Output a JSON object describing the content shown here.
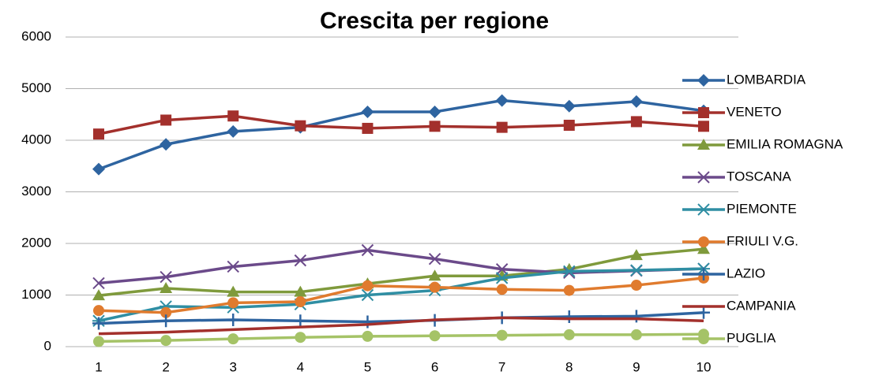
{
  "chart_data": {
    "type": "line",
    "title": "Crescita per regione",
    "categories": [
      "1",
      "2",
      "3",
      "4",
      "5",
      "6",
      "7",
      "8",
      "9",
      "10"
    ],
    "ylim": [
      0,
      6000
    ],
    "yticks": [
      0,
      1000,
      2000,
      3000,
      4000,
      5000,
      6000
    ],
    "grid": true,
    "series": [
      {
        "name": "LOMBARDIA",
        "color": "#2e64a0",
        "marker": "diamond",
        "values": [
          3440,
          3920,
          4170,
          4250,
          4550,
          4550,
          4770,
          4660,
          4750,
          4570
        ]
      },
      {
        "name": "VENETO",
        "color": "#a3302c",
        "marker": "square",
        "values": [
          4120,
          4390,
          4470,
          4280,
          4230,
          4270,
          4250,
          4290,
          4360,
          4270
        ]
      },
      {
        "name": "EMILIA ROMAGNA",
        "color": "#7f9a3c",
        "marker": "triangle",
        "values": [
          990,
          1130,
          1060,
          1060,
          1220,
          1370,
          1370,
          1500,
          1770,
          1890
        ]
      },
      {
        "name": "TOSCANA",
        "color": "#6b4a8a",
        "marker": "x",
        "values": [
          1230,
          1350,
          1550,
          1670,
          1870,
          1700,
          1500,
          1430,
          1470,
          1510
        ]
      },
      {
        "name": "PIEMONTE",
        "color": "#2f8ea3",
        "marker": "star",
        "values": [
          500,
          780,
          760,
          820,
          1000,
          1090,
          1330,
          1460,
          1480,
          1510
        ]
      },
      {
        "name": "FRIULI V.G.",
        "color": "#e07b2e",
        "marker": "circle",
        "values": [
          700,
          660,
          850,
          870,
          1180,
          1150,
          1110,
          1090,
          1190,
          1330
        ]
      },
      {
        "name": "LAZIO",
        "color": "#2e64a0",
        "marker": "plus",
        "values": [
          450,
          500,
          520,
          500,
          480,
          510,
          560,
          580,
          590,
          660
        ]
      },
      {
        "name": "CAMPANIA",
        "color": "#a3302c",
        "marker": "none",
        "values": [
          250,
          280,
          330,
          380,
          430,
          520,
          560,
          540,
          540,
          500
        ]
      },
      {
        "name": "PUGLIA",
        "color": "#a5c367",
        "marker": "circle",
        "values": [
          100,
          120,
          150,
          180,
          200,
          210,
          220,
          230,
          230,
          240
        ]
      }
    ]
  }
}
